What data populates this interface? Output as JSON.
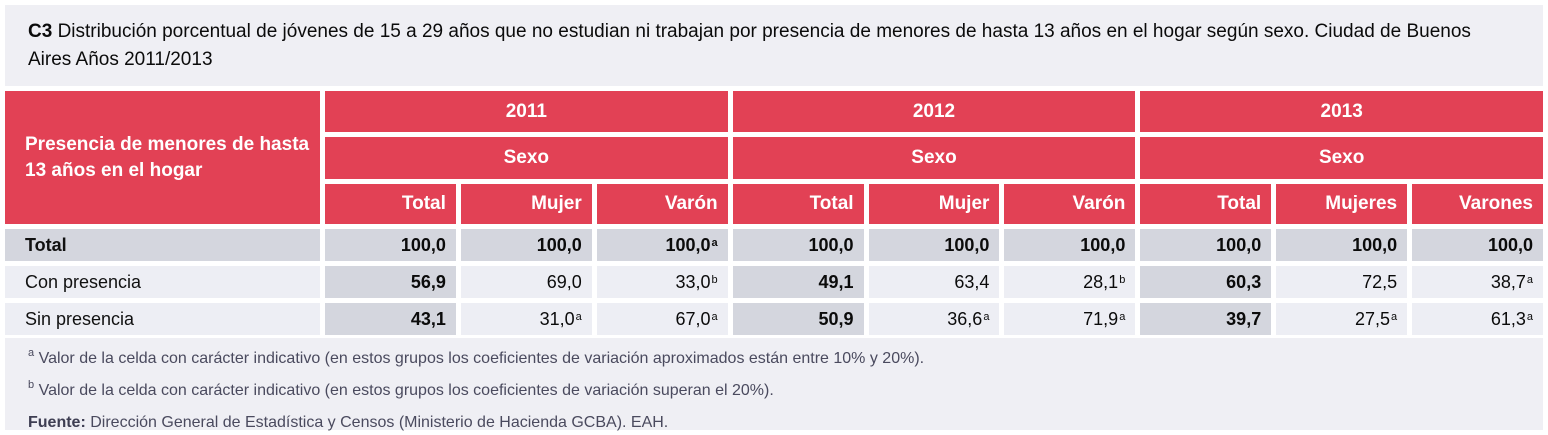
{
  "title": {
    "code": "C3",
    "text": "Distribución porcentual de jóvenes de 15 a 29 años que no estudian ni trabajan por presencia de menores de hasta 13 años en el hogar según sexo. Ciudad de Buenos Aires Años 2011/2013"
  },
  "table": {
    "row_header": "Presencia de menores de hasta 13 años en el hogar",
    "year_groups": [
      {
        "year": "2011",
        "subheader": "Sexo",
        "columns": [
          "Total",
          "Mujer",
          "Varón"
        ]
      },
      {
        "year": "2012",
        "subheader": "Sexo",
        "columns": [
          "Total",
          "Mujer",
          "Varón"
        ]
      },
      {
        "year": "2013",
        "subheader": "Sexo",
        "columns": [
          "Total",
          "Mujeres",
          "Varones"
        ]
      }
    ],
    "rows": [
      {
        "label": "Total",
        "values": [
          {
            "v": "100,0"
          },
          {
            "v": "100,0"
          },
          {
            "v": "100,0",
            "sup": "a"
          },
          {
            "v": "100,0"
          },
          {
            "v": "100,0"
          },
          {
            "v": "100,0"
          },
          {
            "v": "100,0"
          },
          {
            "v": "100,0"
          },
          {
            "v": "100,0"
          }
        ]
      },
      {
        "label": "Con presencia",
        "values": [
          {
            "v": "56,9"
          },
          {
            "v": "69,0"
          },
          {
            "v": "33,0",
            "sup": "b"
          },
          {
            "v": "49,1"
          },
          {
            "v": "63,4"
          },
          {
            "v": "28,1",
            "sup": "b"
          },
          {
            "v": "60,3"
          },
          {
            "v": "72,5"
          },
          {
            "v": "38,7",
            "sup": "a"
          }
        ]
      },
      {
        "label": "Sin presencia",
        "values": [
          {
            "v": "43,1"
          },
          {
            "v": "31,0",
            "sup": "a"
          },
          {
            "v": "67,0",
            "sup": "a"
          },
          {
            "v": "50,9"
          },
          {
            "v": "36,6",
            "sup": "a"
          },
          {
            "v": "71,9",
            "sup": "a"
          },
          {
            "v": "39,7"
          },
          {
            "v": "27,5",
            "sup": "a"
          },
          {
            "v": "61,3",
            "sup": "a"
          }
        ]
      }
    ]
  },
  "footnotes": [
    {
      "marker": "a",
      "text": "Valor de la celda con carácter indicativo (en estos grupos los coeficientes de variación aproximados están entre 10% y 20%)."
    },
    {
      "marker": "b",
      "text": "Valor de la celda con carácter indicativo (en estos grupos los coeficientes de variación superan el 20%)."
    }
  ],
  "source": {
    "label": "Fuente:",
    "text": "Dirección General de Estadística y Censos (Ministerio de Hacienda GCBA). EAH."
  },
  "colors": {
    "header_red": "#E24155",
    "cell_dark_bg": "#D4D6DE",
    "cell_light_bg": "#EDEEF4",
    "panel_bg": "#EFEFF4",
    "footnote_text": "#4A4A5E"
  }
}
